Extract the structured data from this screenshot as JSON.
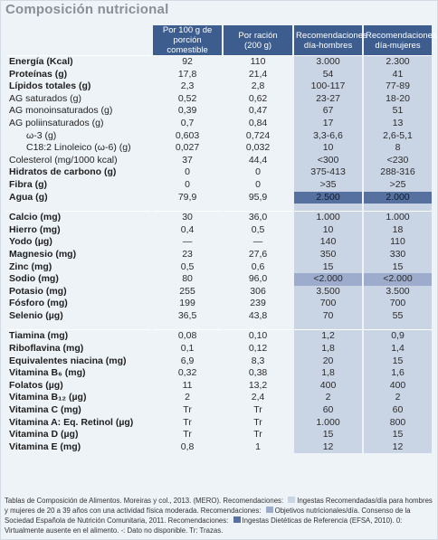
{
  "title": "Composición nutricional",
  "columns": [
    {
      "line1": "Por 100 g de",
      "line2": "porción comestible"
    },
    {
      "line1": "Por ración",
      "line2": "(200 g)"
    },
    {
      "line1": "Recomendaciones",
      "line2": "día-hombres"
    },
    {
      "line1": "Recomendaciones",
      "line2": "día-mujeres"
    }
  ],
  "groups": [
    {
      "rows": [
        {
          "label": "Energía (Kcal)",
          "bold": true,
          "v100": "92",
          "vrac": "110",
          "h": "3.000",
          "m": "2.300"
        },
        {
          "label": "Proteínas (g)",
          "bold": true,
          "v100": "17,8",
          "vrac": "21,4",
          "h": "54",
          "m": "41"
        },
        {
          "label": "Lípidos totales (g)",
          "bold": true,
          "v100": "2,3",
          "vrac": "2,8",
          "h": "100-117",
          "m": "77-89"
        },
        {
          "label": "AG saturados (g)",
          "bold": false,
          "v100": "0,52",
          "vrac": "0,62",
          "h": "23-27",
          "m": "18-20"
        },
        {
          "label": "AG monoinsaturados (g)",
          "bold": false,
          "v100": "0,39",
          "vrac": "0,47",
          "h": "67",
          "m": "51"
        },
        {
          "label": "AG poliinsaturados (g)",
          "bold": false,
          "v100": "0,7",
          "vrac": "0,84",
          "h": "17",
          "m": "13"
        },
        {
          "label": "ω-3 (g)",
          "bold": false,
          "indent": 2,
          "v100": "0,603",
          "vrac": "0,724",
          "h": "3,3-6,6",
          "m": "2,6-5,1"
        },
        {
          "label": "C18:2 Linoleico (ω-6) (g)",
          "bold": false,
          "indent": 2,
          "v100": "0,027",
          "vrac": "0,032",
          "h": "10",
          "m": "8"
        },
        {
          "label": "Colesterol (mg/1000 kcal)",
          "bold": false,
          "v100": "37",
          "vrac": "44,4",
          "h": "<300",
          "m": "<230"
        },
        {
          "label": "Hidratos de carbono (g)",
          "bold": true,
          "v100": "0",
          "vrac": "0",
          "h": "375-413",
          "m": "288-316"
        },
        {
          "label": "Fibra (g)",
          "bold": true,
          "v100": "0",
          "vrac": "0",
          "h": ">35",
          "m": ">25"
        },
        {
          "label": "Agua (g)",
          "bold": true,
          "v100": "79,9",
          "vrac": "95,9",
          "h": "2.500",
          "m": "2.000",
          "hl": "efsa"
        }
      ]
    },
    {
      "rows": [
        {
          "label": "Calcio (mg)",
          "bold": true,
          "v100": "30",
          "vrac": "36,0",
          "h": "1.000",
          "m": "1.000"
        },
        {
          "label": "Hierro (mg)",
          "bold": true,
          "v100": "0,4",
          "vrac": "0,5",
          "h": "10",
          "m": "18"
        },
        {
          "label": "Yodo (µg)",
          "bold": true,
          "v100": "—",
          "vrac": "—",
          "h": "140",
          "m": "110"
        },
        {
          "label": "Magnesio (mg)",
          "bold": true,
          "v100": "23",
          "vrac": "27,6",
          "h": "350",
          "m": "330"
        },
        {
          "label": "Zinc (mg)",
          "bold": true,
          "v100": "0,5",
          "vrac": "0,6",
          "h": "15",
          "m": "15"
        },
        {
          "label": "Sodio (mg)",
          "bold": true,
          "v100": "80",
          "vrac": "96,0",
          "h": "<2.000",
          "m": "<2.000",
          "hl": "obj"
        },
        {
          "label": "Potasio (mg)",
          "bold": true,
          "v100": "255",
          "vrac": "306",
          "h": "3.500",
          "m": "3.500"
        },
        {
          "label": "Fósforo (mg)",
          "bold": true,
          "v100": "199",
          "vrac": "239",
          "h": "700",
          "m": "700"
        },
        {
          "label": "Selenio (µg)",
          "bold": true,
          "v100": "36,5",
          "vrac": "43,8",
          "h": "70",
          "m": "55"
        }
      ]
    },
    {
      "rows": [
        {
          "label": "Tiamina (mg)",
          "bold": true,
          "v100": "0,08",
          "vrac": "0,10",
          "h": "1,2",
          "m": "0,9"
        },
        {
          "label": "Riboflavina (mg)",
          "bold": true,
          "v100": "0,1",
          "vrac": "0,12",
          "h": "1,8",
          "m": "1,4"
        },
        {
          "label": "Equivalentes niacina (mg)",
          "bold": true,
          "v100": "6,9",
          "vrac": "8,3",
          "h": "20",
          "m": "15"
        },
        {
          "label": "Vitamina B₆ (mg)",
          "bold": true,
          "v100": "0,32",
          "vrac": "0,38",
          "h": "1,8",
          "m": "1,6"
        },
        {
          "label": "Folatos (µg)",
          "bold": true,
          "v100": "11",
          "vrac": "13,2",
          "h": "400",
          "m": "400"
        },
        {
          "label": "Vitamina B₁₂ (µg)",
          "bold": true,
          "v100": "2",
          "vrac": "2,4",
          "h": "2",
          "m": "2"
        },
        {
          "label": "Vitamina C (mg)",
          "bold": true,
          "v100": "Tr",
          "vrac": "Tr",
          "h": "60",
          "m": "60"
        },
        {
          "label": "Vitamina A: Eq. Retinol (µg)",
          "bold": true,
          "v100": "Tr",
          "vrac": "Tr",
          "h": "1.000",
          "m": "800"
        },
        {
          "label": "Vitamina D (µg)",
          "bold": true,
          "v100": "Tr",
          "vrac": "Tr",
          "h": "15",
          "m": "15"
        },
        {
          "label": "Vitamina E (mg)",
          "bold": true,
          "v100": "0,8",
          "vrac": "1",
          "h": "12",
          "m": "12"
        }
      ]
    }
  ],
  "notes": {
    "part1": "Tablas de Composición de Alimentos. Moreiras y col., 2013. (MERO). Recomendaciones:",
    "legend1": "Ingestas Recomendadas/día para hombres y mujeres de 20 a 39 años con una actividad física moderada. Recomendaciones:",
    "legend2": "Objetivos nutricionales/día. Consenso de la Sociedad Española de Nutrición Comunitaria, 2011. Recomendaciones:",
    "legend3": "Ingestas Dietéticas de Referencia (EFSA, 2010). 0: Virtualmente ausente en el alimento. -: Dato no disponible. Tr: Trazas.",
    "swatch_colors": {
      "ir": "#c9d4e4",
      "obj": "#9daccc",
      "efsa": "#56719f"
    }
  }
}
